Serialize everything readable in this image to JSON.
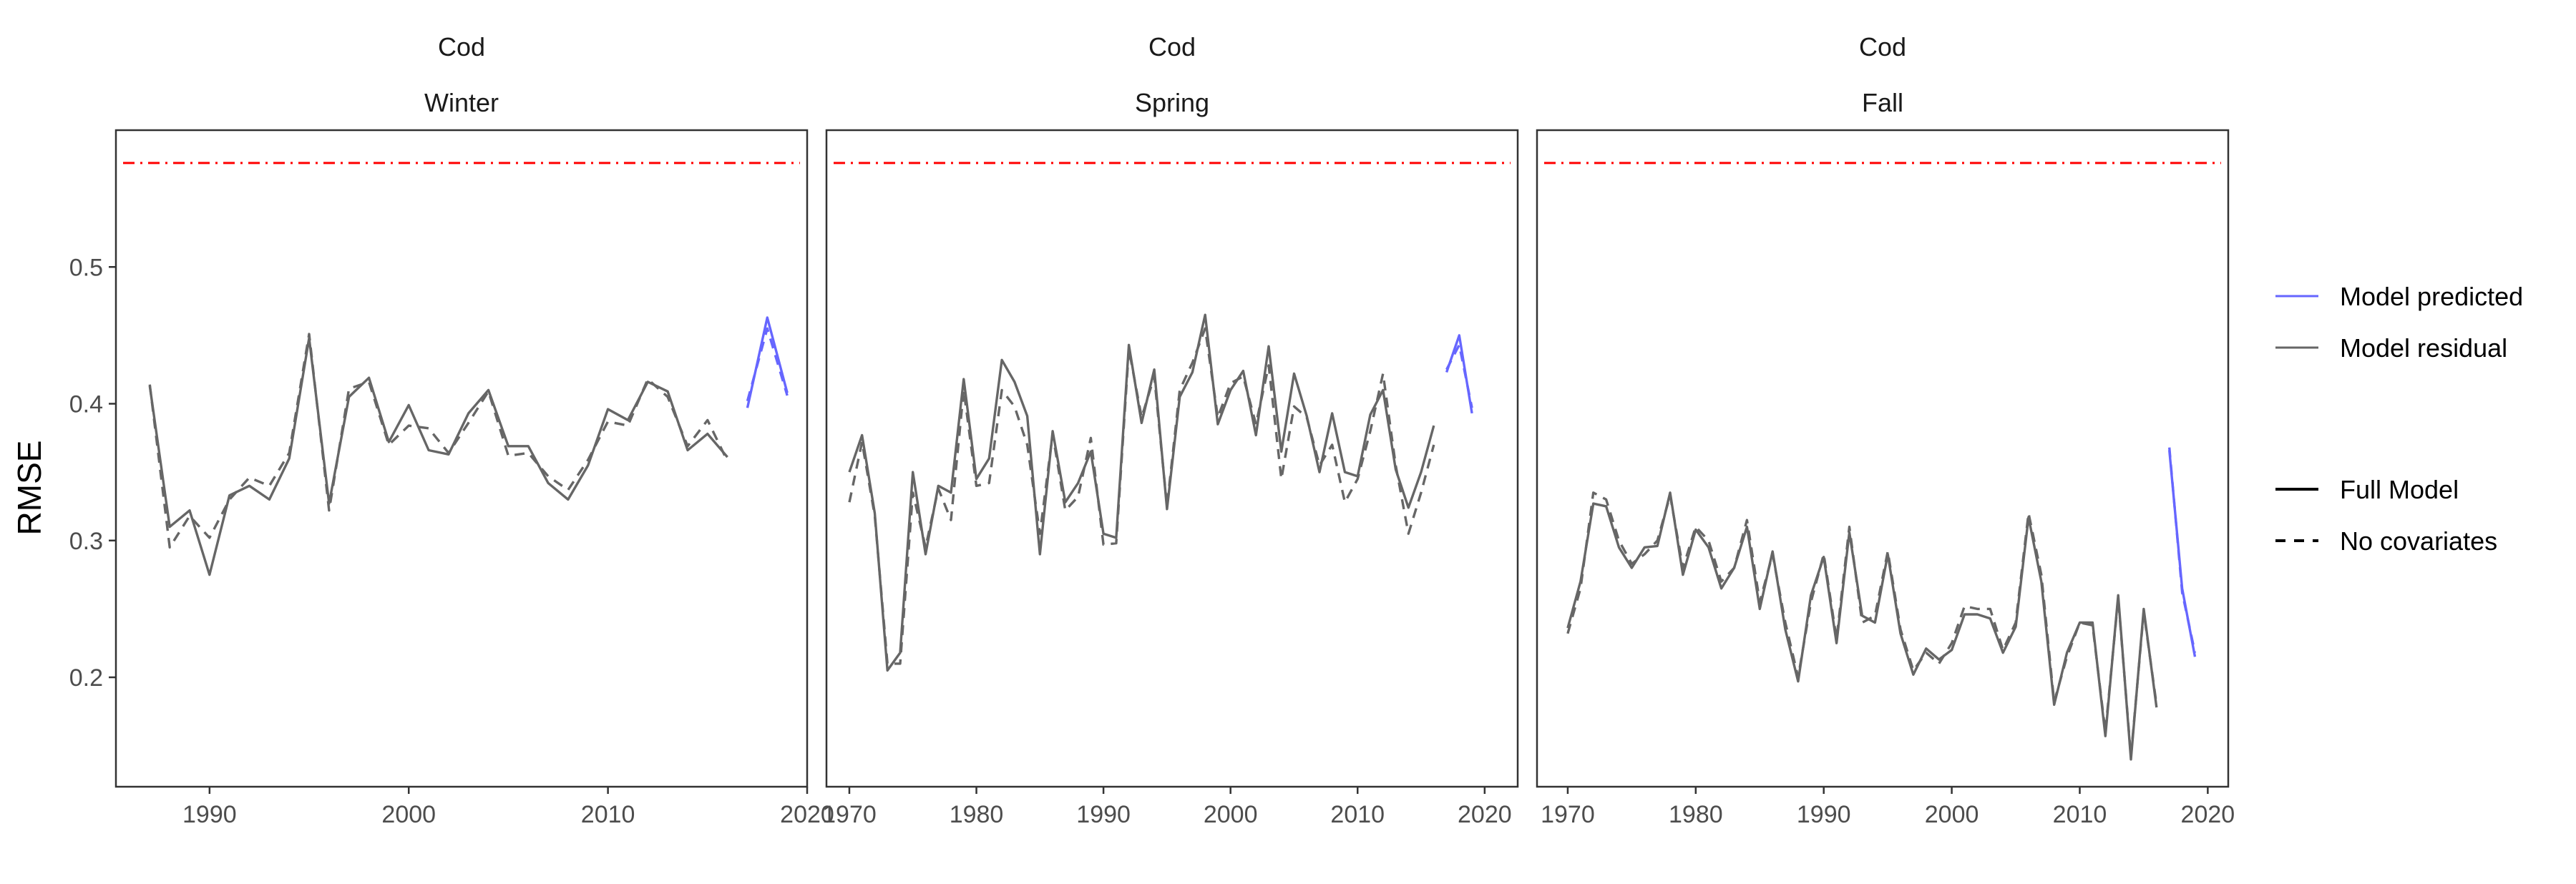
{
  "chart_data": {
    "type": "line",
    "ylabel": "RMSE",
    "ylim": [
      0.12,
      0.6
    ],
    "y_ticks": [
      0.2,
      0.3,
      0.4,
      0.5
    ],
    "reference_line": {
      "y": 0.576,
      "color": "#ff0000",
      "style": "dash-dot"
    },
    "legend": {
      "placement": "right",
      "color_entries": [
        {
          "label": "Model predicted",
          "color": "#6666ff"
        },
        {
          "label": "Model residual",
          "color": "#666666"
        }
      ],
      "linetype_entries": [
        {
          "label": "Full Model",
          "dash": "solid"
        },
        {
          "label": "No covariates",
          "dash": "dashed"
        }
      ]
    },
    "panels": [
      {
        "title_top": "Cod",
        "title_bottom": "Winter",
        "xlim": [
          1985.3,
          2020
        ],
        "x_ticks": [
          1990,
          2000,
          2010,
          2020
        ],
        "residual": {
          "full": {
            "x": [
              1987,
              1988,
              1989,
              1990,
              1991,
              1992,
              1993,
              1994,
              1995,
              1996,
              1997,
              1998,
              1999,
              2000,
              2001,
              2002,
              2003,
              2004,
              2005,
              2006,
              2007,
              2008,
              2009,
              2010,
              2011,
              2012,
              2013,
              2014,
              2015,
              2016
            ],
            "y": [
              0.413,
              0.31,
              0.322,
              0.275,
              0.333,
              0.34,
              0.33,
              0.36,
              0.448,
              0.327,
              0.405,
              0.419,
              0.372,
              0.399,
              0.366,
              0.363,
              0.393,
              0.41,
              0.369,
              0.369,
              0.342,
              0.33,
              0.355,
              0.396,
              0.388,
              0.416,
              0.409,
              0.366,
              0.378,
              0.361
            ]
          },
          "nocov": {
            "x": [
              1987,
              1988,
              1989,
              1990,
              1991,
              1992,
              1993,
              1994,
              1995,
              1996,
              1997,
              1998,
              1999,
              2000,
              2001,
              2002,
              2003,
              2004,
              2005,
              2006,
              2007,
              2008,
              2009,
              2010,
              2011,
              2012,
              2013,
              2014,
              2015,
              2016
            ],
            "y": [
              0.414,
              0.295,
              0.318,
              0.302,
              0.33,
              0.346,
              0.34,
              0.364,
              0.451,
              0.322,
              0.411,
              0.416,
              0.37,
              0.384,
              0.382,
              0.364,
              0.386,
              0.409,
              0.362,
              0.364,
              0.347,
              0.337,
              0.359,
              0.387,
              0.384,
              0.418,
              0.405,
              0.369,
              0.388,
              0.358
            ]
          }
        },
        "predicted": {
          "full": {
            "x": [
              2017,
              2018,
              2019
            ],
            "y": [
              0.397,
              0.463,
              0.408
            ]
          },
          "nocov": {
            "x": [
              2017,
              2018,
              2019
            ],
            "y": [
              0.402,
              0.455,
              0.406
            ]
          }
        }
      },
      {
        "title_top": "Cod",
        "title_bottom": "Spring",
        "xlim": [
          1968.2,
          2022.6
        ],
        "x_ticks": [
          1970,
          1980,
          1990,
          2000,
          2010,
          2020
        ],
        "residual": {
          "full": {
            "x": [
              1968,
              1969,
              1970,
              1971,
              1972,
              1973,
              1974,
              1975,
              1976,
              1977,
              1978,
              1979,
              1980,
              1981,
              1982,
              1983,
              1984,
              1985,
              1986,
              1987,
              1988,
              1989,
              1990,
              1991,
              1992,
              1993,
              1994,
              1995,
              1996,
              1997,
              1998,
              1999,
              2000,
              2001,
              2002,
              2003,
              2004,
              2005,
              2006,
              2007,
              2008,
              2009,
              2010,
              2011,
              2012,
              2013,
              2014,
              2015,
              2016
            ],
            "y": [
              null,
              null,
              0.35,
              0.377,
              0.32,
              0.205,
              0.218,
              0.35,
              0.29,
              0.34,
              0.335,
              0.418,
              0.345,
              0.36,
              0.432,
              0.416,
              0.391,
              0.29,
              0.38,
              0.328,
              0.342,
              0.365,
              0.305,
              0.302,
              0.443,
              0.386,
              0.425,
              0.323,
              0.405,
              0.423,
              0.465,
              0.385,
              0.41,
              0.424,
              0.377,
              0.442,
              0.365,
              0.422,
              0.391,
              0.35,
              0.393,
              0.35,
              0.347,
              0.392,
              0.41,
              0.352,
              0.324,
              0.35,
              0.384
            ]
          },
          "nocov": {
            "x": [
              1970,
              1971,
              1972,
              1973,
              1974,
              1975,
              1976,
              1977,
              1978,
              1979,
              1980,
              1981,
              1982,
              1983,
              1984,
              1985,
              1986,
              1987,
              1988,
              1989,
              1990,
              1991,
              1992,
              1993,
              1994,
              1995,
              1996,
              1997,
              1998,
              1999,
              2000,
              2001,
              2002,
              2003,
              2004,
              2005,
              2006,
              2007,
              2008,
              2009,
              2010,
              2011,
              2012,
              2013,
              2014,
              2015,
              2016
            ],
            "y": [
              0.328,
              0.372,
              0.318,
              0.21,
              0.21,
              0.335,
              0.295,
              0.338,
              0.315,
              0.41,
              0.34,
              0.342,
              0.41,
              0.398,
              0.37,
              0.305,
              0.378,
              0.322,
              0.332,
              0.375,
              0.297,
              0.298,
              0.44,
              0.39,
              0.42,
              0.325,
              0.41,
              0.43,
              0.455,
              0.39,
              0.415,
              0.42,
              0.385,
              0.428,
              0.345,
              0.398,
              0.39,
              0.355,
              0.37,
              0.328,
              0.345,
              0.38,
              0.422,
              0.355,
              0.305,
              0.335,
              0.37
            ]
          }
        },
        "predicted": {
          "full": {
            "x": [
              2017,
              2018,
              2019
            ],
            "y": [
              0.423,
              0.45,
              0.393
            ]
          },
          "nocov": {
            "x": [
              2017,
              2018,
              2019
            ],
            "y": [
              0.425,
              0.443,
              0.397
            ]
          }
        }
      },
      {
        "title_top": "Cod",
        "title_bottom": "Fall",
        "xlim": [
          1967.6,
          2021.6
        ],
        "x_ticks": [
          1970,
          1980,
          1990,
          2000,
          2010,
          2020
        ],
        "residual": {
          "full": {
            "x": [
              1970,
              1971,
              1972,
              1973,
              1974,
              1975,
              1976,
              1977,
              1978,
              1979,
              1980,
              1981,
              1982,
              1983,
              1984,
              1985,
              1986,
              1987,
              1988,
              1989,
              1990,
              1991,
              1992,
              1993,
              1994,
              1995,
              1996,
              1997,
              1998,
              1999,
              2000,
              2001,
              2002,
              2003,
              2004,
              2005,
              2006,
              2007,
              2008,
              2009,
              2010,
              2011,
              2012,
              2013,
              2014,
              2015,
              2016
            ],
            "y": [
              0.236,
              0.27,
              0.327,
              0.325,
              0.295,
              0.28,
              0.295,
              0.296,
              0.335,
              0.275,
              0.308,
              0.295,
              0.265,
              0.28,
              0.31,
              0.25,
              0.292,
              0.235,
              0.197,
              0.26,
              0.288,
              0.225,
              0.306,
              0.245,
              0.24,
              0.29,
              0.232,
              0.202,
              0.221,
              0.213,
              0.22,
              0.246,
              0.246,
              0.243,
              0.218,
              0.237,
              0.317,
              0.27,
              0.18,
              0.218,
              0.24,
              0.24,
              0.157,
              0.26,
              0.14,
              0.25,
              0.178
            ]
          },
          "nocov": {
            "x": [
              1970,
              1971,
              1972,
              1973,
              1974,
              1975,
              1976,
              1977,
              1978,
              1979,
              1980,
              1981,
              1982,
              1983,
              1984,
              1985,
              1986,
              1987,
              1988,
              1989,
              1990,
              1991,
              1992,
              1993,
              1994,
              1995,
              1996,
              1997,
              1998,
              1999,
              2000,
              2001,
              2002,
              2003,
              2004,
              2005,
              2006,
              2007,
              2008,
              2009,
              2010,
              2011,
              2012,
              2013,
              2014,
              2015,
              2016
            ],
            "y": [
              0.232,
              0.265,
              0.335,
              0.33,
              0.3,
              0.283,
              0.29,
              0.3,
              0.333,
              0.28,
              0.31,
              0.3,
              0.27,
              0.28,
              0.315,
              0.255,
              0.29,
              0.24,
              0.2,
              0.255,
              0.29,
              0.228,
              0.31,
              0.24,
              0.245,
              0.292,
              0.235,
              0.205,
              0.218,
              0.21,
              0.225,
              0.252,
              0.25,
              0.25,
              0.22,
              0.24,
              0.32,
              0.275,
              0.182,
              0.215,
              0.24,
              0.238,
              0.16,
              0.258,
              0.142,
              0.248,
              0.18
            ]
          }
        },
        "predicted": {
          "full": {
            "x": [
              2017,
              2018,
              2019
            ],
            "y": [
              0.366,
              0.265,
              0.215
            ]
          },
          "nocov": {
            "x": [
              2017,
              2018,
              2019
            ],
            "y": [
              0.368,
              0.262,
              0.218
            ]
          }
        }
      }
    ]
  }
}
